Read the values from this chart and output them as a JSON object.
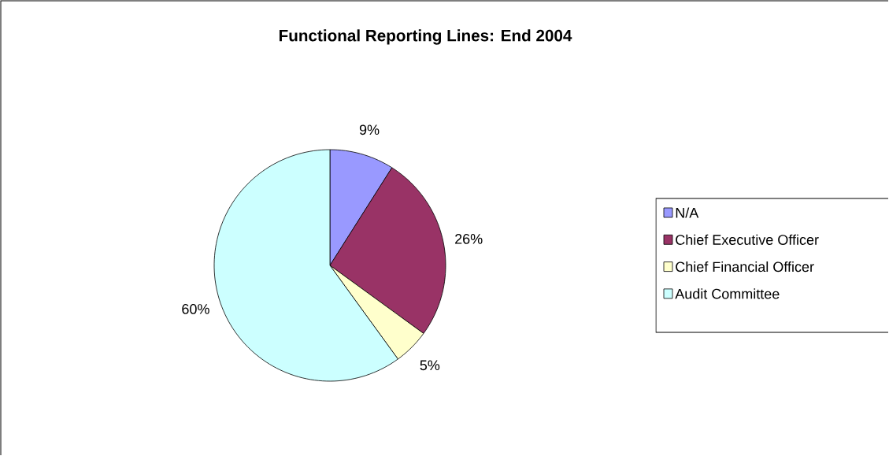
{
  "chart_data": {
    "type": "pie",
    "title": "Functional Reporting Lines: End 2004",
    "categories": [
      "N/A",
      "Chief Executive Officer",
      "Chief Financial Officer",
      "Audit Committee"
    ],
    "values": [
      9,
      26,
      5,
      60
    ],
    "colors": [
      "#9999ff",
      "#993366",
      "#ffffcc",
      "#ccffff"
    ],
    "value_labels": [
      "9%",
      "26%",
      "5%",
      "60%"
    ],
    "legend": "right"
  }
}
